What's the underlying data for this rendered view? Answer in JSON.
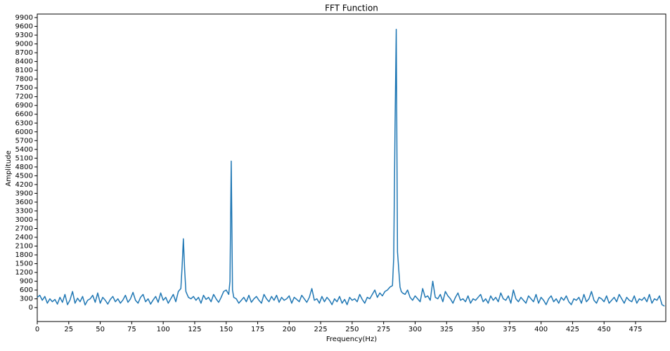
{
  "chart_data": {
    "type": "line",
    "title": "FFT Function",
    "x_label": "Frequency(Hz)",
    "y_label": "Amplitude",
    "xlim": [
      0,
      499
    ],
    "ylim": [
      -475,
      10020
    ],
    "xticks": [
      0,
      25,
      50,
      75,
      100,
      125,
      150,
      175,
      200,
      225,
      250,
      275,
      300,
      325,
      350,
      375,
      400,
      425,
      450,
      475
    ],
    "yticks": [
      0,
      300,
      600,
      900,
      1200,
      1500,
      1800,
      2100,
      2400,
      2700,
      3000,
      3300,
      3600,
      3900,
      4200,
      4500,
      4800,
      5100,
      5400,
      5700,
      6000,
      6300,
      6600,
      6900,
      7200,
      7500,
      7800,
      8100,
      8400,
      8700,
      9000,
      9300,
      9600,
      9900
    ],
    "grid": false,
    "x": [
      0,
      2,
      4,
      6,
      8,
      10,
      12,
      14,
      16,
      18,
      20,
      22,
      24,
      26,
      28,
      30,
      32,
      34,
      36,
      38,
      40,
      42,
      44,
      46,
      48,
      50,
      52,
      54,
      56,
      58,
      60,
      62,
      64,
      66,
      68,
      70,
      72,
      74,
      76,
      78,
      80,
      82,
      84,
      86,
      88,
      90,
      92,
      94,
      96,
      98,
      100,
      102,
      104,
      106,
      108,
      110,
      112,
      114,
      115,
      116,
      117,
      118,
      119,
      120,
      122,
      124,
      126,
      128,
      130,
      132,
      134,
      136,
      138,
      140,
      142,
      144,
      146,
      148,
      150,
      152,
      153,
      154,
      155,
      156,
      158,
      160,
      162,
      164,
      166,
      168,
      170,
      172,
      174,
      176,
      178,
      180,
      182,
      184,
      186,
      188,
      190,
      192,
      194,
      196,
      198,
      200,
      202,
      204,
      206,
      208,
      210,
      212,
      214,
      216,
      218,
      220,
      222,
      224,
      226,
      228,
      230,
      232,
      234,
      236,
      238,
      240,
      242,
      244,
      246,
      248,
      250,
      252,
      254,
      256,
      258,
      260,
      262,
      264,
      266,
      268,
      270,
      272,
      274,
      276,
      278,
      280,
      282,
      283,
      284,
      285,
      286,
      287,
      288,
      289,
      290,
      292,
      294,
      296,
      298,
      300,
      302,
      304,
      306,
      308,
      310,
      312,
      314,
      316,
      318,
      320,
      322,
      324,
      326,
      328,
      330,
      332,
      334,
      336,
      338,
      340,
      342,
      344,
      346,
      348,
      350,
      352,
      354,
      356,
      358,
      360,
      362,
      364,
      366,
      368,
      370,
      372,
      374,
      376,
      378,
      380,
      382,
      384,
      386,
      388,
      390,
      392,
      394,
      396,
      398,
      400,
      402,
      404,
      406,
      408,
      410,
      412,
      414,
      416,
      418,
      420,
      422,
      424,
      426,
      428,
      430,
      432,
      434,
      436,
      438,
      440,
      442,
      444,
      446,
      448,
      450,
      452,
      454,
      456,
      458,
      460,
      462,
      464,
      466,
      468,
      470,
      472,
      474,
      476,
      478,
      480,
      482,
      484,
      486,
      488,
      490,
      492,
      494,
      496,
      498
    ],
    "series": [
      {
        "name": "FFT",
        "color": "#1f77b4",
        "values": [
          350,
          420,
          250,
          380,
          150,
          300,
          200,
          280,
          120,
          350,
          180,
          450,
          100,
          260,
          550,
          150,
          320,
          200,
          380,
          90,
          250,
          300,
          420,
          180,
          500,
          150,
          350,
          250,
          120,
          280,
          380,
          200,
          300,
          150,
          260,
          420,
          180,
          300,
          520,
          250,
          150,
          350,
          450,
          200,
          300,
          120,
          260,
          380,
          180,
          500,
          250,
          350,
          150,
          300,
          450,
          200,
          550,
          650,
          1400,
          2350,
          1300,
          550,
          450,
          350,
          300,
          380,
          250,
          350,
          150,
          420,
          280,
          350,
          200,
          450,
          300,
          180,
          350,
          550,
          600,
          450,
          900,
          5000,
          600,
          350,
          300,
          150,
          250,
          350,
          200,
          420,
          180,
          300,
          380,
          250,
          150,
          450,
          300,
          200,
          380,
          250,
          420,
          180,
          350,
          250,
          300,
          400,
          150,
          350,
          280,
          200,
          420,
          300,
          180,
          350,
          650,
          250,
          300,
          150,
          380,
          200,
          350,
          250,
          100,
          300,
          200,
          380,
          150,
          280,
          100,
          350,
          250,
          300,
          200,
          450,
          280,
          150,
          350,
          300,
          450,
          600,
          350,
          500,
          400,
          550,
          600,
          700,
          750,
          1700,
          6000,
          9500,
          1900,
          1300,
          700,
          550,
          500,
          450,
          600,
          350,
          250,
          400,
          300,
          200,
          650,
          350,
          400,
          250,
          900,
          350,
          300,
          450,
          200,
          550,
          400,
          300,
          150,
          350,
          500,
          250,
          300,
          200,
          400,
          150,
          300,
          250,
          350,
          450,
          200,
          300,
          150,
          400,
          250,
          350,
          200,
          500,
          300,
          250,
          400,
          150,
          600,
          300,
          200,
          350,
          250,
          150,
          400,
          300,
          200,
          450,
          150,
          350,
          250,
          100,
          300,
          400,
          200,
          300,
          150,
          350,
          250,
          400,
          200,
          100,
          300,
          250,
          350,
          150,
          450,
          200,
          300,
          550,
          250,
          150,
          350,
          300,
          200,
          400,
          150,
          250,
          350,
          200,
          450,
          300,
          150,
          350,
          250,
          200,
          400,
          150,
          300,
          250,
          350,
          200,
          450,
          150,
          300,
          250,
          400,
          100,
          50
        ]
      }
    ]
  }
}
